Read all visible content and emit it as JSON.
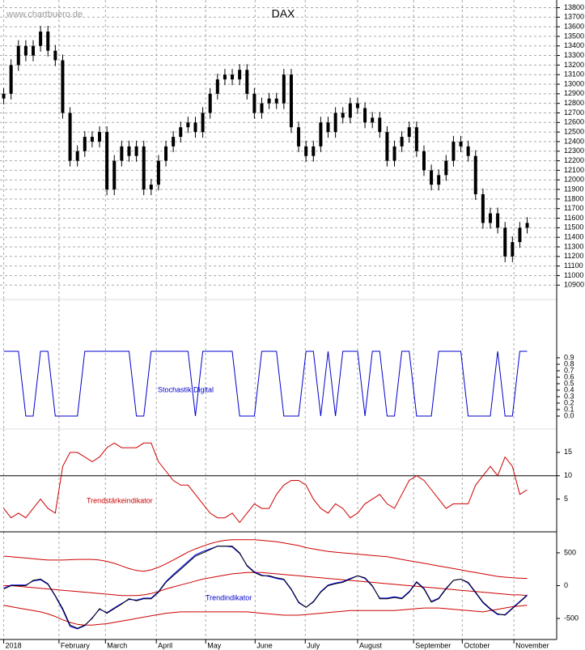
{
  "chart_data": [
    {
      "type": "candlestick",
      "title": "DAX",
      "watermark": "www.chartbuero.de",
      "color": "#000000",
      "grid": true,
      "open": [
        12850,
        12900,
        13200,
        13400,
        13300,
        13400,
        13550,
        13350,
        13250,
        12700,
        12200,
        12300,
        12450,
        12400,
        12500,
        11900,
        12200,
        12350,
        12250,
        12350,
        11900,
        11950,
        12200,
        12350,
        12450,
        12550,
        12600,
        12500,
        12700,
        12900,
        13050,
        13100,
        13050,
        13150,
        12900,
        12700,
        12800,
        12850,
        12800,
        13100,
        12550,
        12350,
        12250,
        12350,
        12600,
        12500,
        12700,
        12650,
        12800,
        12750,
        12600,
        12650,
        12500,
        12200,
        12350,
        12450,
        12550,
        12300,
        12100,
        11950,
        12050,
        12200,
        12400,
        12350,
        12250,
        11850,
        11550,
        11650,
        11500,
        11200,
        11350,
        11500
      ],
      "high": [
        12960,
        13260,
        13460,
        13460,
        13460,
        13610,
        13610,
        13410,
        13310,
        12760,
        12360,
        12510,
        12510,
        12560,
        12560,
        12260,
        12410,
        12410,
        12410,
        12410,
        12010,
        12260,
        12410,
        12510,
        12610,
        12660,
        12660,
        12760,
        12960,
        13110,
        13160,
        13160,
        13210,
        13210,
        12960,
        12860,
        12910,
        12910,
        13160,
        13160,
        12610,
        12410,
        12410,
        12660,
        12660,
        12760,
        12760,
        12860,
        12860,
        12810,
        12710,
        12710,
        12560,
        12410,
        12510,
        12610,
        12610,
        12360,
        12160,
        12110,
        12260,
        12460,
        12460,
        12410,
        12310,
        11910,
        11710,
        11710,
        11560,
        11410,
        11560,
        11610
      ],
      "low": [
        12790,
        12840,
        13140,
        13240,
        13240,
        13340,
        13290,
        13190,
        12640,
        12140,
        12140,
        12240,
        12340,
        12340,
        11840,
        11840,
        12140,
        12190,
        12190,
        11840,
        11840,
        11890,
        12140,
        12290,
        12390,
        12490,
        12440,
        12440,
        12640,
        12840,
        12990,
        12990,
        12990,
        12840,
        12640,
        12640,
        12740,
        12740,
        12740,
        12490,
        12290,
        12190,
        12190,
        12290,
        12440,
        12440,
        12590,
        12590,
        12690,
        12540,
        12540,
        12440,
        12140,
        12140,
        12290,
        12390,
        12240,
        12040,
        11890,
        11890,
        11990,
        12140,
        12290,
        12190,
        11790,
        11490,
        11490,
        11440,
        11140,
        11140,
        11290,
        11440
      ],
      "close": [
        12900,
        13200,
        13400,
        13300,
        13400,
        13550,
        13350,
        13250,
        12700,
        12200,
        12300,
        12450,
        12400,
        12500,
        11900,
        12200,
        12350,
        12250,
        12350,
        11900,
        11950,
        12200,
        12350,
        12450,
        12550,
        12600,
        12500,
        12700,
        12900,
        13050,
        13100,
        13050,
        13150,
        12900,
        12700,
        12800,
        12850,
        12800,
        13100,
        12550,
        12350,
        12250,
        12350,
        12600,
        12500,
        12700,
        12650,
        12800,
        12750,
        12600,
        12650,
        12500,
        12200,
        12350,
        12450,
        12550,
        12300,
        12100,
        11950,
        12050,
        12200,
        12400,
        12350,
        12250,
        11850,
        11550,
        11650,
        11500,
        11200,
        11350,
        11500,
        11550
      ],
      "ylim": [
        10750,
        13880
      ],
      "yticks": [
        10900,
        11000,
        11100,
        11200,
        11300,
        11400,
        11500,
        11600,
        11700,
        11800,
        11900,
        12000,
        12100,
        12200,
        12300,
        12400,
        12500,
        12600,
        12700,
        12800,
        12900,
        13000,
        13100,
        13200,
        13300,
        13400,
        13500,
        13600,
        13700,
        13800
      ]
    },
    {
      "type": "line",
      "label": "Stochastik Digital",
      "label_color": "#0000cc",
      "series": [
        {
          "color": "#0000cc",
          "values": [
            1,
            1,
            1,
            0,
            0,
            1,
            1,
            0,
            0,
            0,
            0,
            1,
            1,
            1,
            1,
            1,
            1,
            1,
            0,
            0,
            1,
            1,
            1,
            1,
            1,
            1,
            0,
            1,
            1,
            1,
            1,
            1,
            0,
            0,
            0,
            1,
            1,
            1,
            0,
            0,
            0,
            1,
            1,
            0,
            1,
            0,
            1,
            1,
            1,
            0,
            1,
            1,
            0,
            0,
            1,
            1,
            0,
            0,
            0,
            1,
            1,
            1,
            1,
            0,
            0,
            0,
            0,
            1,
            0,
            0,
            1,
            1
          ]
        }
      ],
      "ylim": [
        -0.2,
        1.8
      ],
      "yticks": [
        {
          "value": 0,
          "label": "0.0"
        },
        0.1,
        0.2,
        0.3,
        0.4,
        0.5,
        0.6,
        0.7,
        0.8,
        0.9
      ]
    },
    {
      "type": "line",
      "label": "Trendstärkeindikator",
      "label_color": "#cc0000",
      "hline": 10,
      "series": [
        {
          "color": "#cc0000",
          "values": [
            3,
            1,
            2,
            1,
            3,
            5,
            3,
            2,
            12,
            15,
            15,
            14,
            13,
            14,
            16,
            17,
            16,
            16,
            16,
            17,
            17,
            13,
            11,
            9,
            8,
            8,
            6,
            4,
            2,
            1,
            1,
            2,
            0,
            2,
            4,
            3,
            3,
            6,
            8,
            9,
            9,
            8,
            5,
            3,
            2,
            4,
            3,
            1,
            2,
            4,
            5,
            6,
            4,
            3,
            6,
            9,
            10,
            9,
            7,
            5,
            3,
            4,
            4,
            4,
            8,
            10,
            12,
            10,
            14,
            12,
            6,
            7
          ]
        }
      ],
      "ylim": [
        -2,
        20
      ],
      "yticks": [
        5,
        10,
        15
      ]
    },
    {
      "type": "line",
      "label": "Trendindikator",
      "label_color": "#0000cc",
      "series": [
        {
          "color": "#cc0000",
          "values": [
            450,
            440,
            430,
            420,
            410,
            400,
            390,
            390,
            390,
            395,
            400,
            400,
            400,
            390,
            370,
            340,
            300,
            260,
            230,
            220,
            240,
            280,
            330,
            390,
            450,
            510,
            560,
            600,
            640,
            670,
            690,
            700,
            700,
            700,
            700,
            690,
            680,
            670,
            650,
            630,
            610,
            580,
            560,
            540,
            520,
            510,
            500,
            490,
            480,
            470,
            460,
            450,
            440,
            420,
            400,
            380,
            360,
            340,
            320,
            300,
            280,
            260,
            240,
            220,
            200,
            180,
            160,
            140,
            130,
            120,
            115,
            110
          ]
        },
        {
          "color": "#cc0000",
          "values": [
            0,
            0,
            -10,
            -20,
            -30,
            -40,
            -50,
            -60,
            -70,
            -80,
            -90,
            -100,
            -110,
            -120,
            -130,
            -140,
            -150,
            -150,
            -150,
            -140,
            -120,
            -90,
            -50,
            -20,
            10,
            40,
            70,
            100,
            120,
            140,
            160,
            180,
            190,
            200,
            200,
            200,
            190,
            180,
            170,
            160,
            150,
            140,
            130,
            120,
            110,
            100,
            90,
            80,
            70,
            60,
            50,
            40,
            30,
            20,
            10,
            0,
            -10,
            -20,
            -30,
            -40,
            -50,
            -60,
            -70,
            -80,
            -90,
            -100,
            -110,
            -120,
            -130,
            -140,
            -140,
            -150
          ]
        },
        {
          "color": "#cc0000",
          "values": [
            -300,
            -320,
            -340,
            -360,
            -380,
            -400,
            -430,
            -470,
            -520,
            -560,
            -590,
            -600,
            -600,
            -590,
            -580,
            -560,
            -540,
            -520,
            -500,
            -480,
            -460,
            -440,
            -420,
            -410,
            -400,
            -400,
            -400,
            -400,
            -400,
            -400,
            -400,
            -400,
            -400,
            -400,
            -410,
            -420,
            -430,
            -440,
            -450,
            -450,
            -450,
            -440,
            -430,
            -420,
            -410,
            -400,
            -390,
            -380,
            -380,
            -380,
            -380,
            -380,
            -380,
            -380,
            -370,
            -360,
            -350,
            -340,
            -340,
            -340,
            -350,
            -360,
            -370,
            -380,
            -390,
            -400,
            -380,
            -360,
            -340,
            -320,
            -310,
            -300
          ]
        },
        {
          "color": "#0000ff",
          "values": [
            -40,
            10,
            10,
            10,
            70,
            90,
            20,
            -160,
            -370,
            -620,
            -660,
            -610,
            -490,
            -360,
            -410,
            -340,
            -270,
            -210,
            -220,
            -190,
            -190,
            -90,
            60,
            170,
            270,
            370,
            470,
            520,
            560,
            600,
            600,
            590,
            490,
            310,
            210,
            160,
            140,
            110,
            90,
            -60,
            -260,
            -330,
            -240,
            -90,
            10,
            40,
            60,
            110,
            150,
            110,
            -10,
            -190,
            -190,
            -170,
            -190,
            -90,
            60,
            -40,
            -240,
            -190,
            -40,
            80,
            100,
            40,
            -110,
            -260,
            -360,
            -440,
            -440,
            -340,
            -240,
            -140
          ]
        },
        {
          "color": "#000000",
          "values": [
            -50,
            0,
            0,
            0,
            80,
            100,
            30,
            -150,
            -350,
            -600,
            -650,
            -600,
            -500,
            -350,
            -420,
            -350,
            -280,
            -200,
            -230,
            -200,
            -200,
            -100,
            50,
            150,
            250,
            350,
            450,
            500,
            550,
            600,
            600,
            600,
            500,
            300,
            200,
            150,
            150,
            120,
            100,
            -50,
            -250,
            -330,
            -250,
            -100,
            0,
            30,
            50,
            100,
            150,
            120,
            0,
            -200,
            -200,
            -180,
            -200,
            -100,
            50,
            -50,
            -250,
            -200,
            -50,
            80,
            100,
            50,
            -100,
            -250,
            -350,
            -430,
            -450,
            -350,
            -250,
            -150
          ]
        }
      ],
      "ylim": [
        -820,
        820
      ],
      "yticks": [
        -500,
        0,
        500
      ],
      "xlim": [
        -0.5,
        75
      ],
      "xticks": [
        {
          "value": 0,
          "label": "2018"
        },
        {
          "value": 7.5,
          "label": "February"
        },
        {
          "value": 13.8,
          "label": "March"
        },
        {
          "value": 20.7,
          "label": "April"
        },
        {
          "value": 27.4,
          "label": "May"
        },
        {
          "value": 34.1,
          "label": "June"
        },
        {
          "value": 40.9,
          "label": "July"
        },
        {
          "value": 48,
          "label": "August"
        },
        {
          "value": 55.6,
          "label": "September"
        },
        {
          "value": 62.2,
          "label": "October"
        },
        {
          "value": 69.2,
          "label": "November"
        }
      ]
    }
  ]
}
